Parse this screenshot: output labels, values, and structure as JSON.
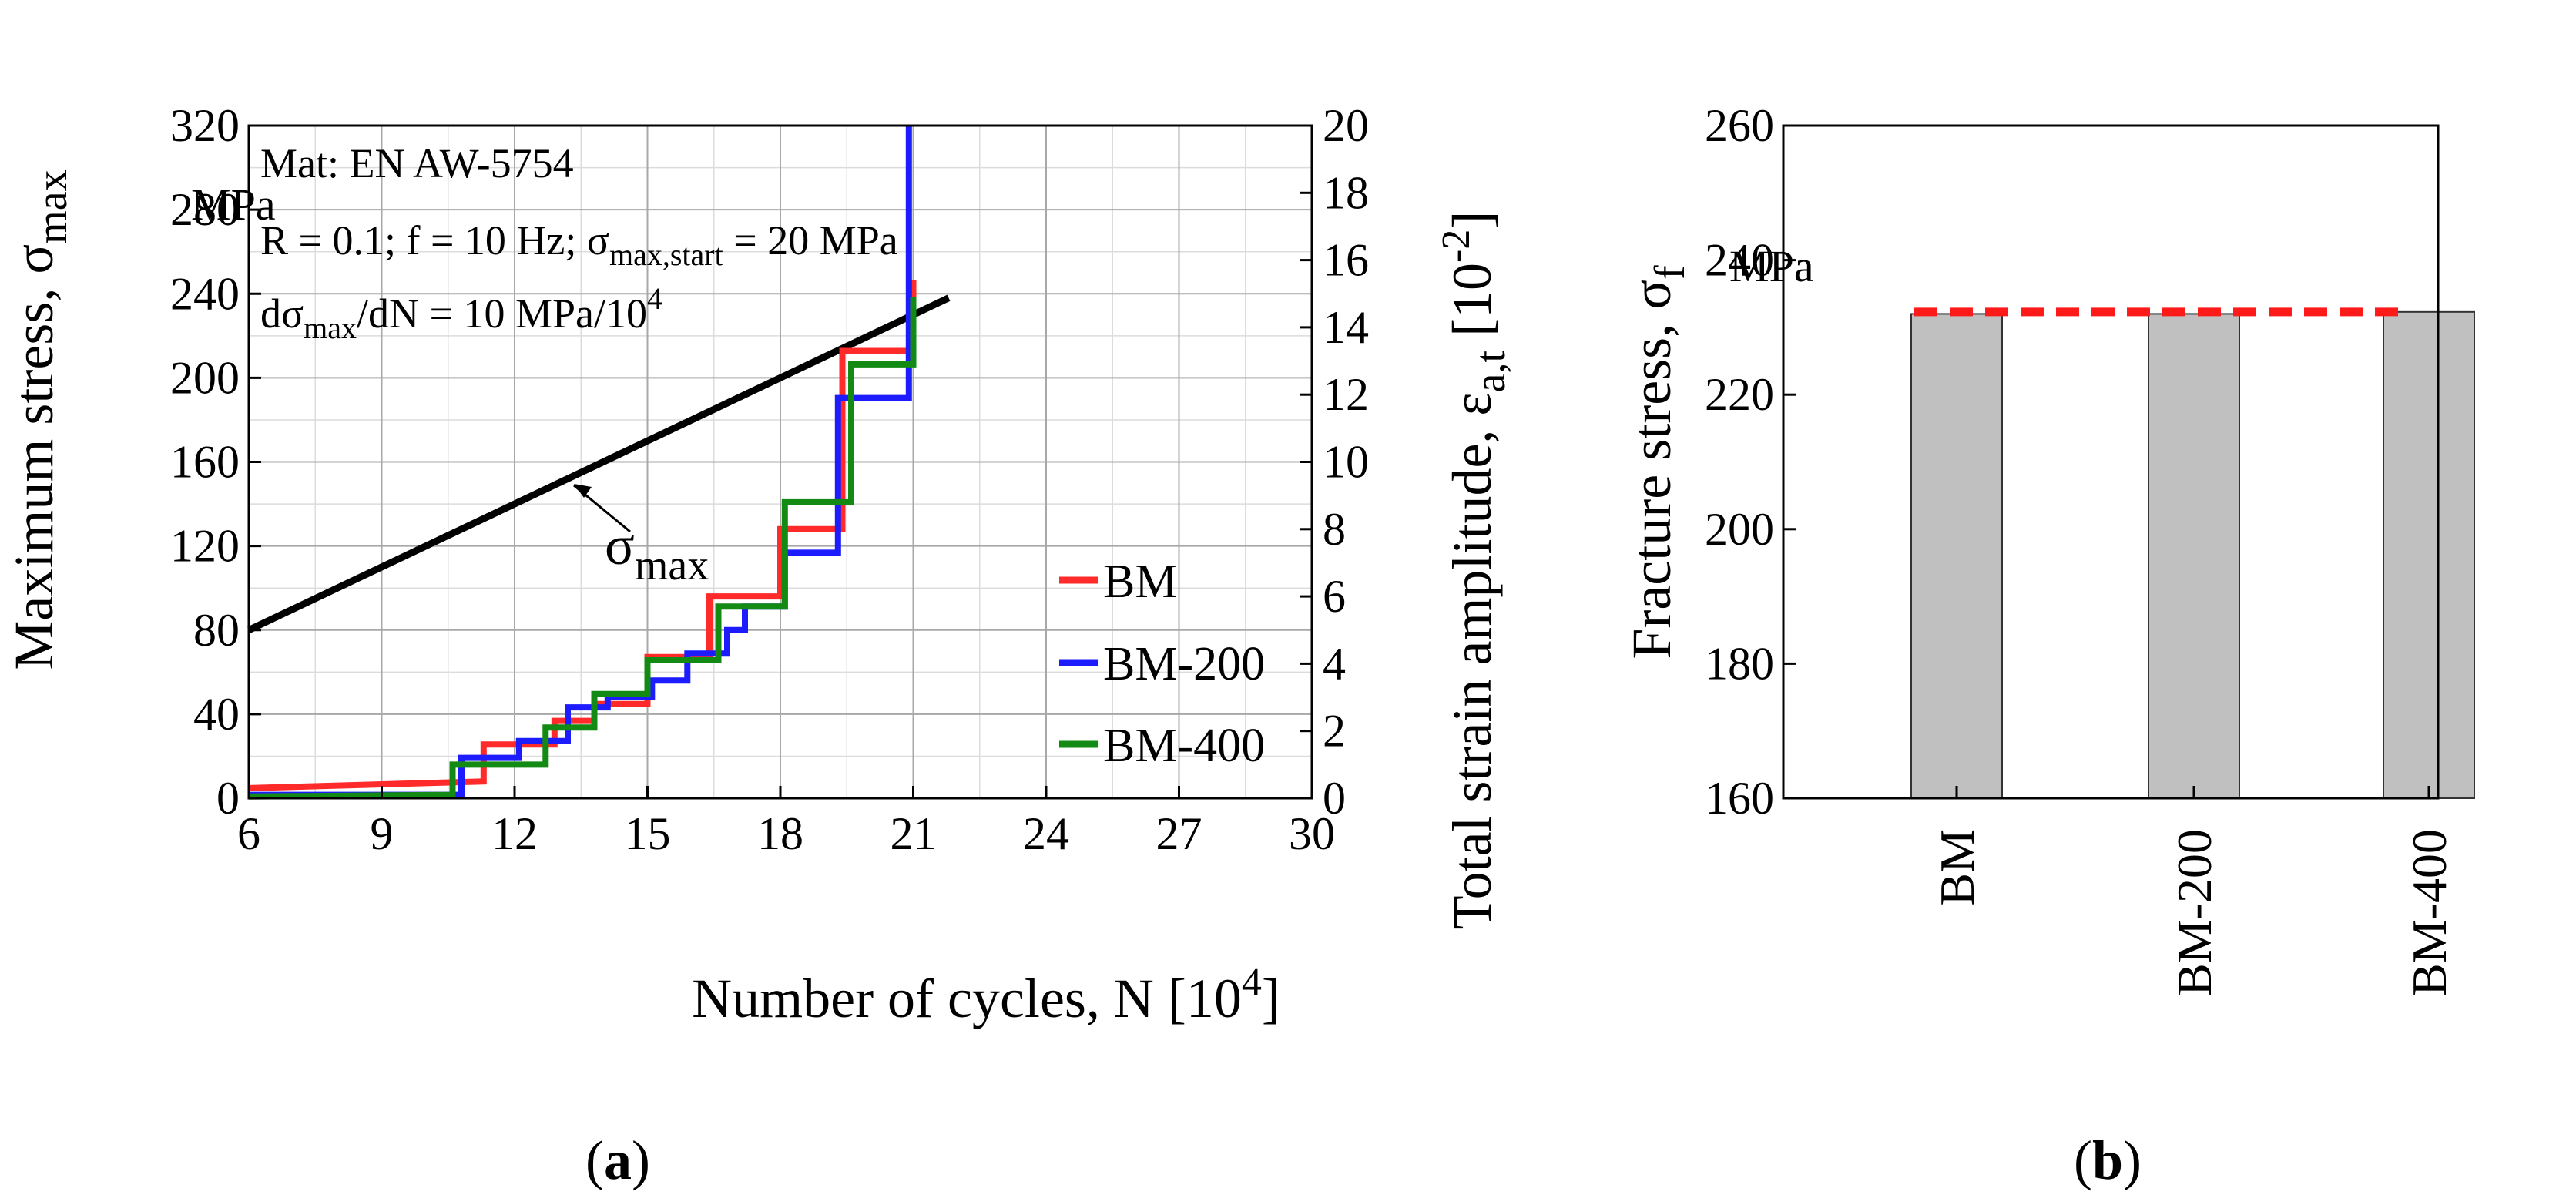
{
  "chart_data": [
    {
      "panel_label": "a",
      "type": "line",
      "xlabel": "Number of cycles, N",
      "xunit": "10",
      "xunit_exp": "4",
      "ylabel": "Maximum stress, σ",
      "ylabel_sub": "max",
      "yunit": "MPa",
      "y2label": "Total strain amplitude, ε",
      "y2label_sub": "a,t",
      "y2unit": "10",
      "y2unit_exp": "-2",
      "xlim": [
        6,
        30
      ],
      "ylim": [
        0,
        320
      ],
      "y2lim": [
        0,
        20
      ],
      "xticks": [
        "6",
        "9",
        "12",
        "15",
        "18",
        "21",
        "24",
        "27",
        "30"
      ],
      "yticks": [
        "0",
        "40",
        "80",
        "120",
        "160",
        "200",
        "240",
        "280",
        "320"
      ],
      "y2ticks": [
        "0",
        "2",
        "4",
        "6",
        "8",
        "10",
        "12",
        "14",
        "16",
        "18",
        "20"
      ],
      "grid": true,
      "annotations": {
        "mat": "Mat: EN AW-5754",
        "cond_prefix": "R = 0.1; f = 10 Hz; σ",
        "cond_sub": "max,start",
        "cond_suffix": " = 20 MPa",
        "rate_a": "dσ",
        "rate_sub": "max",
        "rate_b": "/dN = 10 MPa/10",
        "rate_exp": "4",
        "sigma_label": "σ",
        "sigma_sub": "max"
      },
      "sigma_max_line": {
        "x": [
          6,
          21.8
        ],
        "y": [
          80,
          238
        ]
      },
      "legend": {
        "position": "right-middle",
        "entries": [
          "BM",
          "BM-200",
          "BM-400"
        ]
      },
      "series": [
        {
          "name": "BM",
          "color": "#ff2a2a",
          "axis": "right",
          "points": [
            [
              6,
              0.3
            ],
            [
              11.3,
              0.5
            ],
            [
              11.3,
              1.6
            ],
            [
              12.9,
              1.6
            ],
            [
              12.9,
              2.3
            ],
            [
              13.8,
              2.3
            ],
            [
              13.8,
              2.8
            ],
            [
              15.0,
              2.8
            ],
            [
              15.0,
              4.2
            ],
            [
              16.4,
              4.2
            ],
            [
              16.4,
              6.0
            ],
            [
              18.0,
              6.0
            ],
            [
              18.0,
              8.0
            ],
            [
              19.4,
              8.0
            ],
            [
              19.4,
              13.3
            ],
            [
              21.0,
              13.3
            ],
            [
              21.0,
              15.4
            ]
          ]
        },
        {
          "name": "BM-200",
          "color": "#1c1cff",
          "axis": "right",
          "points": [
            [
              6,
              0.1
            ],
            [
              10.8,
              0.1
            ],
            [
              10.8,
              1.2
            ],
            [
              12.1,
              1.2
            ],
            [
              12.1,
              1.7
            ],
            [
              13.2,
              1.7
            ],
            [
              13.2,
              2.7
            ],
            [
              14.1,
              2.7
            ],
            [
              14.1,
              3.0
            ],
            [
              15.1,
              3.0
            ],
            [
              15.1,
              3.5
            ],
            [
              15.9,
              3.5
            ],
            [
              15.9,
              4.3
            ],
            [
              16.8,
              4.3
            ],
            [
              16.8,
              5.0
            ],
            [
              17.2,
              5.0
            ],
            [
              17.2,
              5.7
            ],
            [
              18.1,
              5.7
            ],
            [
              18.1,
              7.3
            ],
            [
              19.3,
              7.3
            ],
            [
              19.3,
              11.9
            ],
            [
              20.9,
              11.9
            ],
            [
              20.9,
              20.0
            ]
          ]
        },
        {
          "name": "BM-400",
          "color": "#138a13",
          "axis": "right",
          "points": [
            [
              6,
              0.05
            ],
            [
              10.6,
              0.1
            ],
            [
              10.6,
              1.0
            ],
            [
              12.7,
              1.0
            ],
            [
              12.7,
              2.1
            ],
            [
              13.8,
              2.1
            ],
            [
              13.8,
              3.1
            ],
            [
              15.0,
              3.1
            ],
            [
              15.0,
              4.1
            ],
            [
              16.6,
              4.1
            ],
            [
              16.6,
              5.7
            ],
            [
              18.1,
              5.7
            ],
            [
              18.1,
              8.8
            ],
            [
              19.6,
              8.8
            ],
            [
              19.6,
              12.9
            ],
            [
              21.0,
              12.9
            ],
            [
              21.0,
              14.9
            ]
          ]
        }
      ]
    },
    {
      "panel_label": "b",
      "type": "bar",
      "ylabel": "Fracture stress, σ",
      "ylabel_sub": "f",
      "yunit": "MPa",
      "ylim": [
        160,
        260
      ],
      "yticks": [
        "160",
        "180",
        "200",
        "220",
        "240",
        "260"
      ],
      "categories": [
        "BM",
        "BM-200",
        "BM-400"
      ],
      "values": [
        232,
        232,
        232.3
      ],
      "bar_color": "#c0c0c0",
      "reference_line": {
        "value": 232.3,
        "color": "#ff1a1a",
        "style": "dashed"
      }
    }
  ]
}
